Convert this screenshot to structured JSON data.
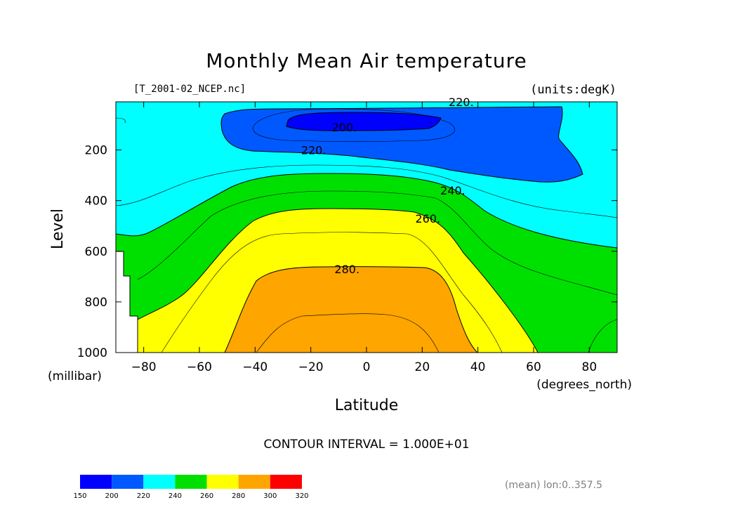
{
  "chart_data": {
    "type": "contour",
    "title": "Monthly Mean Air temperature",
    "file_label": "[T_2001-02_NCEP.nc]",
    "units_label": "(units:degK)",
    "xlabel": "Latitude",
    "x_units": "(degrees_north)",
    "ylabel": "Level",
    "y_units": "(millibar)",
    "xlim": [
      -90,
      90
    ],
    "ylim": [
      1000,
      10
    ],
    "y_inverted": true,
    "x_ticks": [
      -80,
      -60,
      -40,
      -20,
      0,
      20,
      40,
      60,
      80
    ],
    "x_tick_labels": [
      "−80",
      "−60",
      "−40",
      "−20",
      "0",
      "20",
      "40",
      "60",
      "80"
    ],
    "y_ticks": [
      200,
      400,
      600,
      800,
      1000
    ],
    "y_tick_labels": [
      "200",
      "400",
      "600",
      "800",
      "1000"
    ],
    "contour_interval_text": "CONTOUR INTERVAL = 1.000E+01",
    "contour_labels": [
      {
        "text": "220.",
        "lat": 34,
        "level": 10
      },
      {
        "text": "200.",
        "lat": -8,
        "level": 110
      },
      {
        "text": "220.",
        "lat": -19,
        "level": 200
      },
      {
        "text": "240.",
        "lat": 31,
        "level": 360
      },
      {
        "text": "260.",
        "lat": 22,
        "level": 470
      },
      {
        "text": "280.",
        "lat": -7,
        "level": 670
      }
    ],
    "filled_levels": [
      {
        "min": 150,
        "max": 200,
        "color": "#0000ff"
      },
      {
        "min": 200,
        "max": 220,
        "color": "#0059ff"
      },
      {
        "min": 220,
        "max": 240,
        "color": "#00ffff"
      },
      {
        "min": 240,
        "max": 260,
        "color": "#00e000"
      },
      {
        "min": 260,
        "max": 280,
        "color": "#ffff00"
      },
      {
        "min": 280,
        "max": 300,
        "color": "#ffa500"
      },
      {
        "min": 300,
        "max": 320,
        "color": "#ff0000"
      }
    ],
    "colorbar": {
      "ticks": [
        "150",
        "200",
        "220",
        "240",
        "260",
        "280",
        "300",
        "320"
      ],
      "colors": [
        "#0000ff",
        "#0059ff",
        "#00ffff",
        "#00e000",
        "#ffff00",
        "#ffa500",
        "#ff0000"
      ]
    },
    "footnote": "(mean) lon:0..357.5"
  }
}
